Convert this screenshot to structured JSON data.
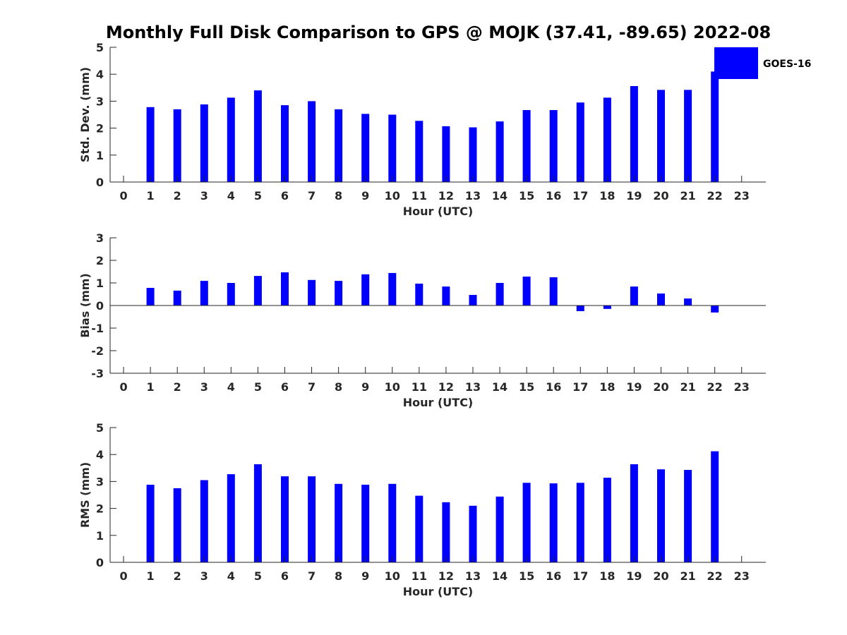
{
  "title": "Monthly Full Disk Comparison to GPS @ MOJK (37.41, -89.65) 2022-08",
  "legend": {
    "label": "GOES-16",
    "color": "#0000ff",
    "placement": "top-right"
  },
  "chart_data": [
    {
      "type": "bar",
      "ylabel": "Std. Dev. (mm)",
      "xlabel": "Hour (UTC)",
      "ylim": [
        0,
        5
      ],
      "yticks": [
        0,
        1,
        2,
        3,
        4,
        5
      ],
      "xticks": [
        0,
        1,
        2,
        3,
        4,
        5,
        6,
        7,
        8,
        9,
        10,
        11,
        12,
        13,
        14,
        15,
        16,
        17,
        18,
        19,
        20,
        21,
        22,
        23
      ],
      "series": [
        {
          "name": "GOES-16",
          "x": [
            1,
            2,
            3,
            4,
            5,
            6,
            7,
            8,
            9,
            10,
            11,
            12,
            13,
            14,
            15,
            16,
            17,
            18,
            19,
            20,
            21,
            22
          ],
          "values": [
            2.78,
            2.7,
            2.88,
            3.13,
            3.4,
            2.85,
            3.0,
            2.7,
            2.53,
            2.5,
            2.27,
            2.07,
            2.03,
            2.25,
            2.67,
            2.67,
            2.95,
            3.13,
            3.56,
            3.42,
            3.42,
            4.1
          ]
        }
      ]
    },
    {
      "type": "bar",
      "ylabel": "Bias (mm)",
      "xlabel": "Hour (UTC)",
      "ylim": [
        -3,
        3
      ],
      "yticks": [
        -3,
        -2,
        -1,
        0,
        1,
        2,
        3
      ],
      "xticks": [
        0,
        1,
        2,
        3,
        4,
        5,
        6,
        7,
        8,
        9,
        10,
        11,
        12,
        13,
        14,
        15,
        16,
        17,
        18,
        19,
        20,
        21,
        22,
        23
      ],
      "series": [
        {
          "name": "GOES-16",
          "x": [
            1,
            2,
            3,
            4,
            5,
            6,
            7,
            8,
            9,
            10,
            11,
            12,
            13,
            14,
            15,
            16,
            17,
            18,
            19,
            20,
            21,
            22
          ],
          "values": [
            0.78,
            0.66,
            1.09,
            1.0,
            1.31,
            1.47,
            1.13,
            1.09,
            1.38,
            1.44,
            0.97,
            0.84,
            0.47,
            1.0,
            1.28,
            1.25,
            -0.25,
            -0.15,
            0.84,
            0.53,
            0.31,
            -0.31
          ]
        }
      ]
    },
    {
      "type": "bar",
      "ylabel": "RMS (mm)",
      "xlabel": "Hour (UTC)",
      "ylim": [
        0,
        5
      ],
      "yticks": [
        0,
        1,
        2,
        3,
        4,
        5
      ],
      "xticks": [
        0,
        1,
        2,
        3,
        4,
        5,
        6,
        7,
        8,
        9,
        10,
        11,
        12,
        13,
        14,
        15,
        16,
        17,
        18,
        19,
        20,
        21,
        22,
        23
      ],
      "series": [
        {
          "name": "GOES-16",
          "x": [
            1,
            2,
            3,
            4,
            5,
            6,
            7,
            8,
            9,
            10,
            11,
            12,
            13,
            14,
            15,
            16,
            17,
            18,
            19,
            20,
            21,
            22
          ],
          "values": [
            2.88,
            2.75,
            3.05,
            3.27,
            3.64,
            3.19,
            3.19,
            2.91,
            2.88,
            2.91,
            2.47,
            2.23,
            2.1,
            2.44,
            2.95,
            2.93,
            2.95,
            3.14,
            3.64,
            3.45,
            3.43,
            4.12
          ]
        }
      ]
    }
  ]
}
